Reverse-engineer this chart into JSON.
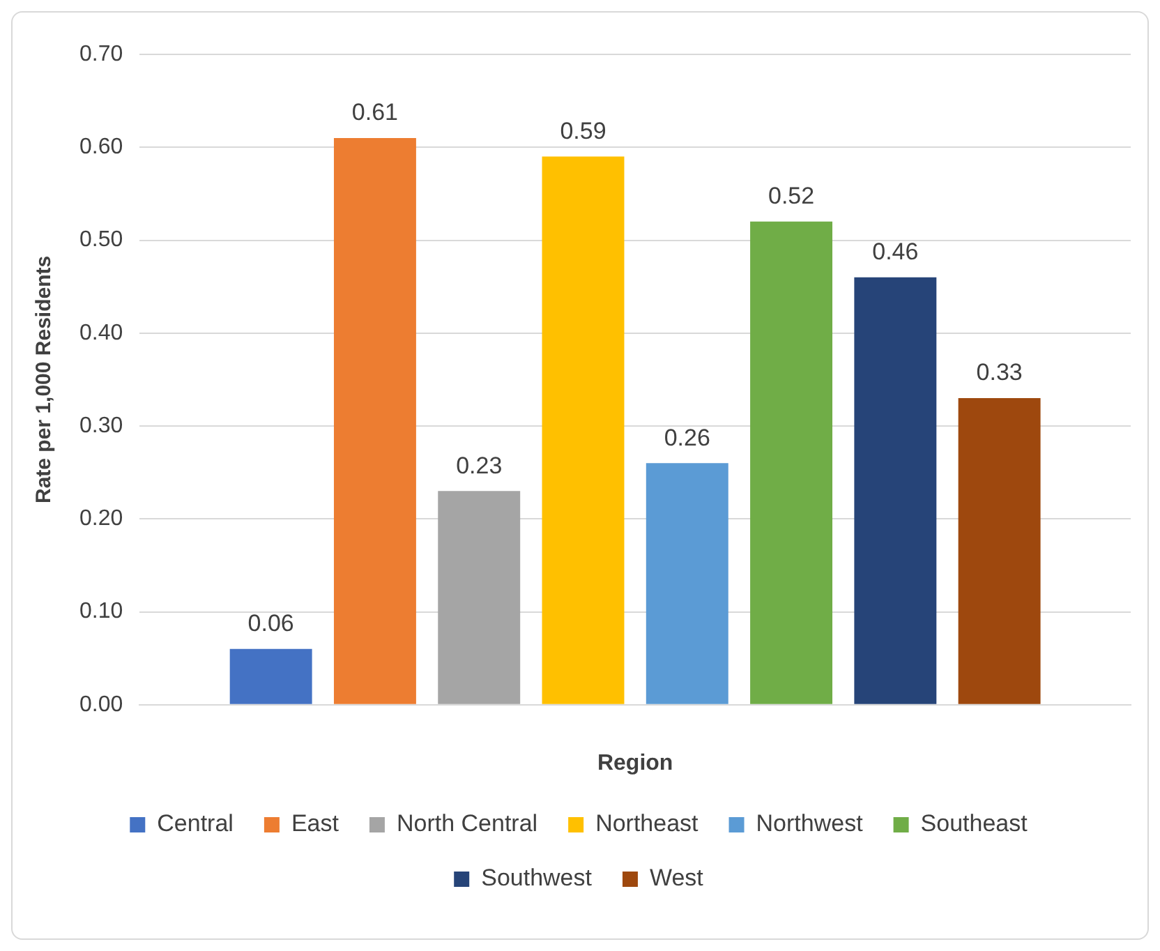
{
  "chart_data": {
    "type": "bar",
    "xlabel": "Region",
    "ylabel": "Rate per 1,000 Residents",
    "categories": [
      null
    ],
    "series": [
      {
        "name": "Central",
        "color": "#4472c4",
        "values": [
          0.06
        ]
      },
      {
        "name": "East",
        "color": "#ed7d31",
        "values": [
          0.61
        ]
      },
      {
        "name": "North Central",
        "color": "#a5a5a5",
        "values": [
          0.23
        ]
      },
      {
        "name": "Northeast",
        "color": "#ffc000",
        "values": [
          0.59
        ]
      },
      {
        "name": "Northwest",
        "color": "#5b9bd5",
        "values": [
          0.26
        ]
      },
      {
        "name": "Southeast",
        "color": "#70ad47",
        "values": [
          0.52
        ]
      },
      {
        "name": "Southwest",
        "color": "#264478",
        "values": [
          0.46
        ]
      },
      {
        "name": "West",
        "color": "#9e480e",
        "values": [
          0.33
        ]
      }
    ],
    "ylim": [
      0,
      0.7
    ],
    "yticks": [
      {
        "value": 0,
        "label": "0.00"
      },
      {
        "value": 0.1,
        "label": "0.10"
      },
      {
        "value": 0.2,
        "label": "0.20"
      },
      {
        "value": 0.3,
        "label": "0.30"
      },
      {
        "value": 0.4,
        "label": "0.40"
      },
      {
        "value": 0.5,
        "label": "0.50"
      },
      {
        "value": 0.6,
        "label": "0.60"
      },
      {
        "value": 0.7,
        "label": "0.70"
      }
    ],
    "grid": "y",
    "legend": "bottom",
    "data_labels": true
  }
}
